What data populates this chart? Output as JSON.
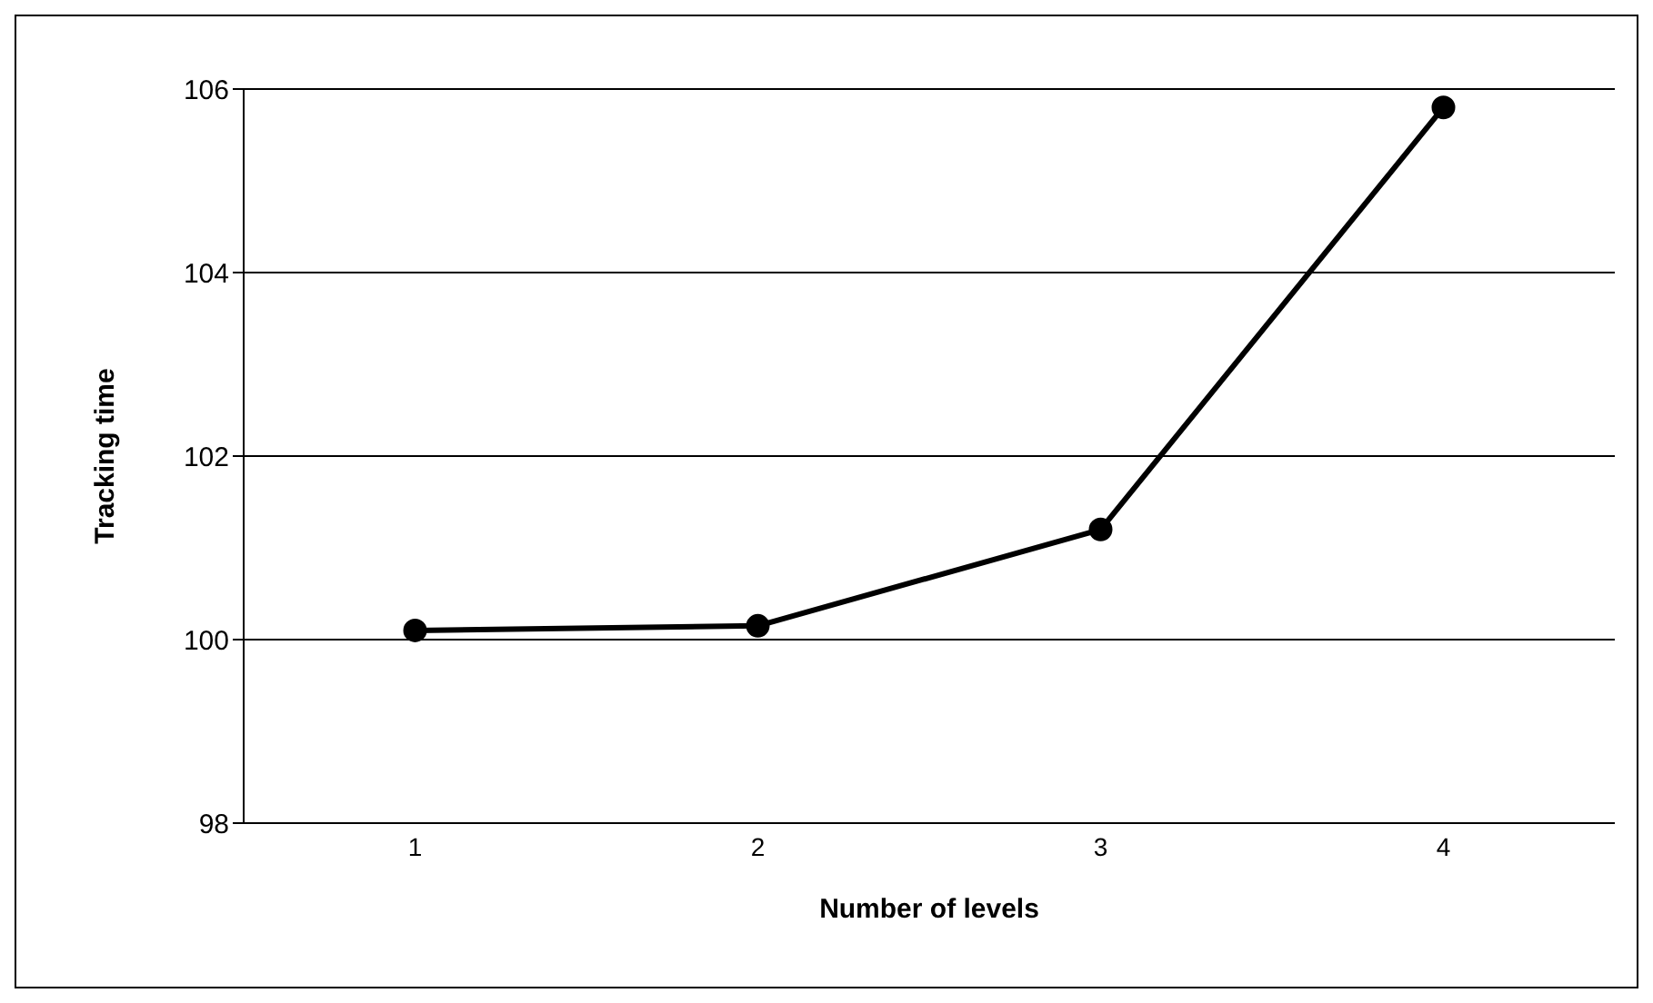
{
  "chart_data": {
    "type": "line",
    "xlabel": "Number of levels",
    "ylabel": "Tracking time",
    "categories": [
      "1",
      "2",
      "3",
      "4"
    ],
    "series": [
      {
        "color": "#000000",
        "values": [
          100.1,
          100.15,
          101.2,
          105.8
        ]
      }
    ],
    "ylim": [
      98,
      106
    ],
    "yticks": [
      98,
      100,
      102,
      104,
      106
    ],
    "grid": "y",
    "legend": false,
    "marker": "circle",
    "line_style": "solid"
  }
}
